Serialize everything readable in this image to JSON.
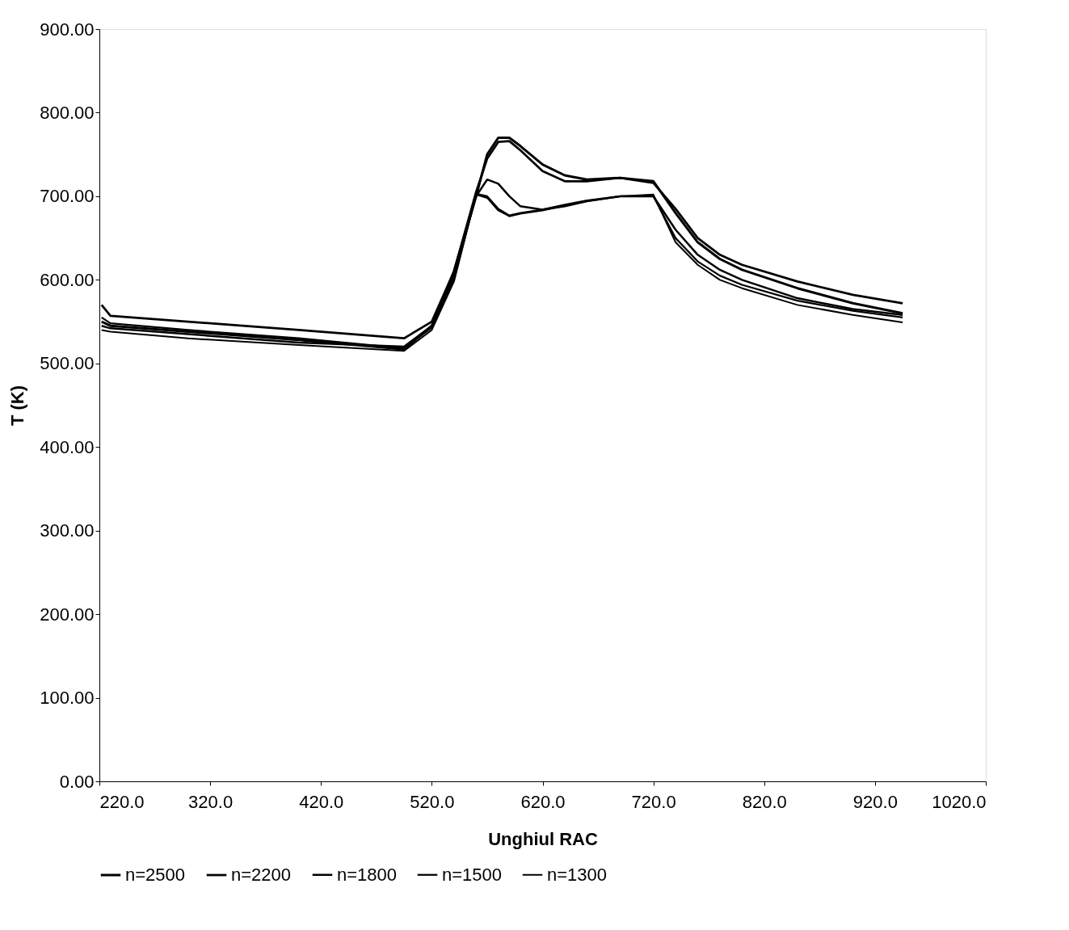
{
  "chart_data": {
    "type": "line",
    "xlabel": "Unghiul RAC",
    "ylabel": "T (K)",
    "xlim": [
      220,
      1020
    ],
    "ylim": [
      0,
      900
    ],
    "xticks": [
      {
        "value": 220,
        "label": "220.0"
      },
      {
        "value": 320,
        "label": "320.0"
      },
      {
        "value": 420,
        "label": "420.0"
      },
      {
        "value": 520,
        "label": "520.0"
      },
      {
        "value": 620,
        "label": "620.0"
      },
      {
        "value": 720,
        "label": "720.0"
      },
      {
        "value": 820,
        "label": "820.0"
      },
      {
        "value": 920,
        "label": "920.0"
      },
      {
        "value": 1020,
        "label": "1020.0"
      }
    ],
    "yticks": [
      {
        "value": 0,
        "label": "0.00"
      },
      {
        "value": 100,
        "label": "100.00"
      },
      {
        "value": 200,
        "label": "200.00"
      },
      {
        "value": 300,
        "label": "300.00"
      },
      {
        "value": 400,
        "label": "400.00"
      },
      {
        "value": 500,
        "label": "500.00"
      },
      {
        "value": 600,
        "label": "600.00"
      },
      {
        "value": 700,
        "label": "700.00"
      },
      {
        "value": 800,
        "label": "800.00"
      },
      {
        "value": 900,
        "label": "900.00"
      }
    ],
    "x": [
      222,
      230,
      300,
      400,
      495,
      520,
      540,
      560,
      570,
      580,
      590,
      600,
      620,
      640,
      660,
      690,
      720,
      740,
      760,
      780,
      800,
      850,
      900,
      945
    ],
    "grid": false,
    "legend": "bottom",
    "marker": "none",
    "line_style": "solid",
    "series": [
      {
        "name": "n=2500",
        "color": "#000000",
        "values": [
          550,
          545,
          538,
          528,
          517,
          545,
          610,
          700,
          750,
          770,
          770,
          760,
          738,
          725,
          720,
          722,
          718,
          680,
          645,
          625,
          612,
          590,
          572,
          560
        ]
      },
      {
        "name": "n=2200",
        "color": "#000000",
        "values": [
          570,
          557,
          550,
          540,
          530,
          550,
          610,
          705,
          745,
          765,
          766,
          755,
          730,
          718,
          718,
          722,
          716,
          685,
          650,
          630,
          618,
          598,
          582,
          572
        ]
      },
      {
        "name": "n=1800",
        "color": "#000000",
        "values": [
          545,
          542,
          535,
          525,
          520,
          545,
          605,
          700,
          720,
          715,
          700,
          688,
          684,
          688,
          694,
          700,
          700,
          660,
          630,
          612,
          600,
          578,
          565,
          558
        ]
      },
      {
        "name": "n=1500",
        "color": "#000000",
        "values": [
          555,
          548,
          540,
          530,
          518,
          543,
          600,
          703,
          700,
          685,
          677,
          680,
          684,
          690,
          695,
          700,
          700,
          650,
          622,
          605,
          594,
          575,
          563,
          555
        ]
      },
      {
        "name": "n=1300",
        "color": "#000000",
        "values": [
          540,
          538,
          530,
          522,
          515,
          540,
          598,
          702,
          698,
          683,
          676,
          679,
          683,
          689,
          694,
          700,
          702,
          645,
          618,
          600,
          590,
          570,
          558,
          549
        ]
      }
    ]
  }
}
